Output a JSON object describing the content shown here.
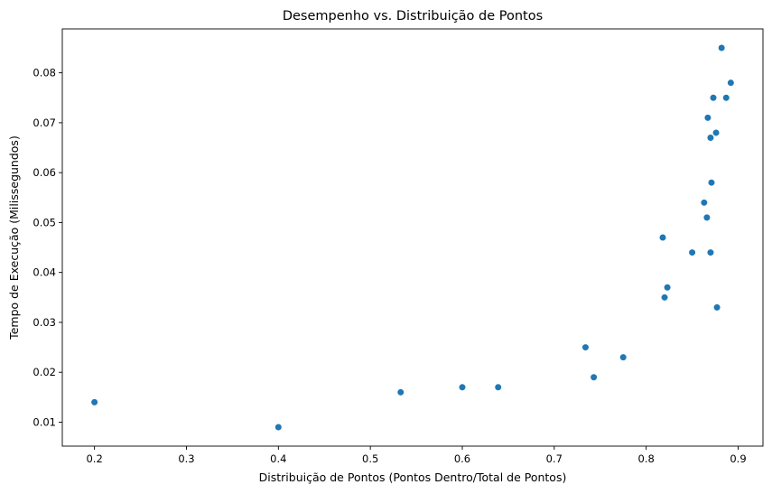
{
  "chart_data": {
    "type": "scatter",
    "title": "Desempenho vs. Distribuição de Pontos",
    "xlabel": "Distribuição de Pontos (Pontos Dentro/Total de Pontos)",
    "ylabel": "Tempo de Execução (Milissegundos)",
    "xlim": [
      0.165,
      0.927
    ],
    "ylim": [
      0.0052,
      0.0888
    ],
    "xticks": [
      0.2,
      0.3,
      0.4,
      0.5,
      0.6,
      0.7,
      0.8,
      0.9
    ],
    "yticks": [
      0.01,
      0.02,
      0.03,
      0.04,
      0.05,
      0.06,
      0.07,
      0.08
    ],
    "xtick_labels": [
      "0.2",
      "0.3",
      "0.4",
      "0.5",
      "0.6",
      "0.7",
      "0.8",
      "0.9"
    ],
    "ytick_labels": [
      "0.01",
      "0.02",
      "0.03",
      "0.04",
      "0.05",
      "0.06",
      "0.07",
      "0.08"
    ],
    "grid": false,
    "marker_color": "#1f77b4",
    "points": [
      {
        "x": 0.2,
        "y": 0.014
      },
      {
        "x": 0.4,
        "y": 0.009
      },
      {
        "x": 0.533,
        "y": 0.016
      },
      {
        "x": 0.6,
        "y": 0.017
      },
      {
        "x": 0.639,
        "y": 0.017
      },
      {
        "x": 0.734,
        "y": 0.025
      },
      {
        "x": 0.743,
        "y": 0.019
      },
      {
        "x": 0.775,
        "y": 0.023
      },
      {
        "x": 0.818,
        "y": 0.047
      },
      {
        "x": 0.82,
        "y": 0.035
      },
      {
        "x": 0.823,
        "y": 0.037
      },
      {
        "x": 0.85,
        "y": 0.044
      },
      {
        "x": 0.863,
        "y": 0.054
      },
      {
        "x": 0.866,
        "y": 0.051
      },
      {
        "x": 0.867,
        "y": 0.071
      },
      {
        "x": 0.87,
        "y": 0.044
      },
      {
        "x": 0.87,
        "y": 0.067
      },
      {
        "x": 0.871,
        "y": 0.058
      },
      {
        "x": 0.873,
        "y": 0.075
      },
      {
        "x": 0.876,
        "y": 0.068
      },
      {
        "x": 0.877,
        "y": 0.033
      },
      {
        "x": 0.882,
        "y": 0.085
      },
      {
        "x": 0.887,
        "y": 0.075
      },
      {
        "x": 0.892,
        "y": 0.078
      }
    ]
  }
}
